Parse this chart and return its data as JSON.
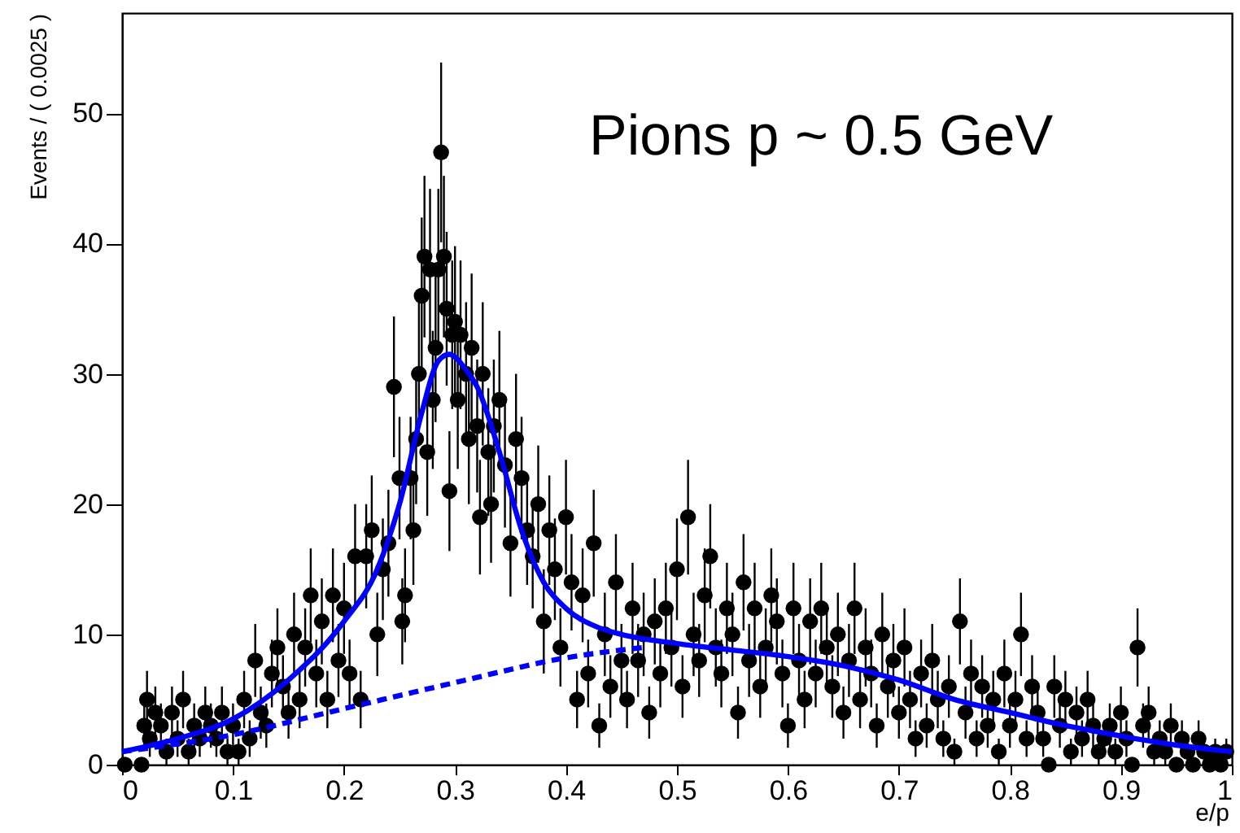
{
  "chart_data": {
    "type": "scatter",
    "xlabel": "e/p",
    "ylabel": "Events / ( 0.0025 )",
    "annotations": [
      "Pions p  ~ 0.5 GeV"
    ],
    "xlim": [
      0,
      1
    ],
    "xticks": [
      0,
      0.1,
      0.2,
      0.3,
      0.4,
      0.5,
      0.6,
      0.7,
      0.8,
      0.9,
      1
    ],
    "ylim": [
      0,
      57.7
    ],
    "yticks": [
      0,
      10,
      20,
      30,
      40,
      50
    ],
    "grid": false,
    "marker": "circle",
    "series": [
      {
        "color": "#000000",
        "x": [
          0.0025,
          0.0175,
          0.02,
          0.0225,
          0.025,
          0.03,
          0.035,
          0.04,
          0.045,
          0.05,
          0.055,
          0.06,
          0.065,
          0.07,
          0.075,
          0.08,
          0.085,
          0.09,
          0.095,
          0.1,
          0.105,
          0.11,
          0.115,
          0.12,
          0.125,
          0.13,
          0.135,
          0.14,
          0.145,
          0.15,
          0.155,
          0.16,
          0.165,
          0.17,
          0.175,
          0.18,
          0.185,
          0.19,
          0.195,
          0.2,
          0.205,
          0.21,
          0.215,
          0.22,
          0.225,
          0.23,
          0.235,
          0.24,
          0.245,
          0.25,
          0.2525,
          0.255,
          0.26,
          0.2625,
          0.265,
          0.2675,
          0.27,
          0.2725,
          0.275,
          0.2775,
          0.28,
          0.2825,
          0.285,
          0.2875,
          0.29,
          0.2925,
          0.295,
          0.2975,
          0.3,
          0.3025,
          0.305,
          0.31,
          0.3125,
          0.315,
          0.32,
          0.3225,
          0.325,
          0.33,
          0.3325,
          0.335,
          0.34,
          0.345,
          0.35,
          0.355,
          0.36,
          0.365,
          0.37,
          0.375,
          0.38,
          0.385,
          0.39,
          0.395,
          0.4,
          0.405,
          0.41,
          0.415,
          0.42,
          0.425,
          0.43,
          0.435,
          0.44,
          0.445,
          0.45,
          0.455,
          0.46,
          0.465,
          0.47,
          0.475,
          0.48,
          0.485,
          0.49,
          0.495,
          0.5,
          0.505,
          0.51,
          0.515,
          0.52,
          0.525,
          0.53,
          0.535,
          0.54,
          0.545,
          0.55,
          0.555,
          0.56,
          0.565,
          0.57,
          0.575,
          0.58,
          0.585,
          0.59,
          0.595,
          0.6,
          0.605,
          0.61,
          0.615,
          0.62,
          0.625,
          0.63,
          0.635,
          0.64,
          0.645,
          0.65,
          0.655,
          0.66,
          0.665,
          0.67,
          0.675,
          0.68,
          0.685,
          0.69,
          0.695,
          0.7,
          0.705,
          0.71,
          0.715,
          0.72,
          0.725,
          0.73,
          0.735,
          0.74,
          0.745,
          0.75,
          0.755,
          0.76,
          0.765,
          0.77,
          0.775,
          0.78,
          0.785,
          0.79,
          0.795,
          0.8,
          0.805,
          0.81,
          0.815,
          0.82,
          0.825,
          0.83,
          0.835,
          0.84,
          0.845,
          0.85,
          0.855,
          0.86,
          0.865,
          0.87,
          0.875,
          0.88,
          0.885,
          0.89,
          0.895,
          0.9,
          0.905,
          0.91,
          0.915,
          0.92,
          0.925,
          0.93,
          0.935,
          0.94,
          0.945,
          0.95,
          0.955,
          0.96,
          0.965,
          0.97,
          0.975,
          0.98,
          0.985,
          0.99,
          0.995
        ],
        "values": [
          0,
          0,
          3,
          5,
          2,
          4,
          3,
          1,
          4,
          2,
          5,
          1,
          3,
          2,
          4,
          3,
          2,
          4,
          1,
          3,
          1,
          5,
          2,
          8,
          4,
          3,
          7,
          9,
          6,
          4,
          10,
          5,
          9,
          13,
          7,
          11,
          5,
          13,
          8,
          12,
          7,
          16,
          5,
          16,
          18,
          10,
          15,
          17,
          29,
          22,
          11,
          13,
          22,
          18,
          25,
          30,
          36,
          39,
          24,
          38,
          28,
          32,
          38,
          47,
          39,
          35,
          21,
          33,
          34,
          28,
          33,
          30,
          25,
          32,
          26,
          19,
          30,
          24,
          20,
          26,
          28,
          23,
          17,
          25,
          22,
          18,
          16,
          20,
          11,
          18,
          15,
          9,
          19,
          14,
          5,
          13,
          7,
          17,
          3,
          10,
          6,
          14,
          8,
          5,
          12,
          8,
          10,
          4,
          11,
          7,
          12,
          9,
          15,
          6,
          19,
          10,
          8,
          13,
          16,
          9,
          7,
          12,
          10,
          4,
          14,
          8,
          12,
          6,
          9,
          13,
          11,
          7,
          3,
          12,
          8,
          5,
          11,
          7,
          12,
          9,
          6,
          10,
          4,
          8,
          12,
          5,
          9,
          7,
          3,
          10,
          6,
          8,
          4,
          9,
          5,
          2,
          7,
          3,
          8,
          5,
          2,
          6,
          1,
          11,
          4,
          7,
          2,
          6,
          3,
          5,
          1,
          7,
          3,
          5,
          10,
          2,
          6,
          4,
          2,
          0,
          6,
          3,
          5,
          1,
          4,
          2,
          5,
          3,
          1,
          2,
          3,
          1,
          4,
          2,
          0,
          9,
          3,
          4,
          1,
          2,
          1,
          3,
          0,
          2,
          1,
          0,
          2,
          1,
          0,
          1,
          0,
          1
        ],
        "errors": [
          null,
          null,
          1.7,
          2.2,
          1.4,
          2,
          1.7,
          1,
          2,
          1.4,
          2.2,
          1,
          1.7,
          1.4,
          2,
          1.7,
          1.4,
          2,
          1,
          1.7,
          1,
          2.2,
          1.4,
          2.8,
          2,
          1.7,
          2.6,
          3,
          2.4,
          2,
          3.2,
          2.2,
          3,
          3.6,
          2.6,
          3.3,
          2.2,
          3.6,
          2.8,
          3.5,
          2.6,
          4,
          2.2,
          4,
          4.2,
          3.2,
          3.9,
          4.1,
          5.4,
          4.7,
          3.3,
          3.6,
          4.7,
          4.2,
          5,
          5.5,
          6,
          6.2,
          4.9,
          6.2,
          5.3,
          5.7,
          6.2,
          6.9,
          6.2,
          5.9,
          4.6,
          5.7,
          5.8,
          5.3,
          5.7,
          5.5,
          5,
          5.7,
          5.1,
          4.4,
          5.5,
          4.9,
          4.5,
          5.1,
          5.3,
          4.8,
          4.1,
          5,
          4.7,
          4.2,
          4,
          4.5,
          4,
          4.2,
          3.9,
          3,
          4.4,
          3.7,
          2.2,
          3.6,
          2.6,
          4.1,
          1.7,
          3.2,
          2.4,
          3.7,
          2.8,
          2.2,
          3.5,
          2.8,
          3.2,
          2,
          3.3,
          2.6,
          3.5,
          3,
          3.9,
          2.4,
          4.4,
          3.2,
          2.8,
          3.6,
          4,
          3,
          2.6,
          3.5,
          3.2,
          2,
          3.7,
          2.8,
          3.5,
          2.4,
          3,
          3.6,
          3.3,
          2.6,
          1.7,
          3.5,
          2.8,
          2.2,
          3.3,
          2.6,
          3.5,
          3,
          2.4,
          3.2,
          2,
          2.8,
          3.5,
          2.2,
          3,
          2.6,
          1.7,
          3.2,
          2.4,
          2.8,
          2,
          3,
          2.2,
          1.4,
          2.6,
          1.7,
          2.8,
          2.2,
          1.4,
          2.4,
          1,
          3.3,
          2,
          2.6,
          1.4,
          2.4,
          1.7,
          2.2,
          1,
          2.6,
          1.7,
          2.2,
          3.2,
          1.4,
          2.4,
          2,
          1.4,
          null,
          2.4,
          1.7,
          2.2,
          1,
          2,
          1.4,
          2.2,
          1.7,
          1,
          1.4,
          1.7,
          1,
          2,
          1.4,
          null,
          3,
          1.7,
          2,
          1,
          1.4,
          1,
          1.7,
          null,
          1.4,
          1,
          null,
          1.4,
          1,
          null,
          1,
          null,
          1
        ]
      },
      {
        "type": "line",
        "color": "#0000ff",
        "line_style": "solid",
        "marker": "none",
        "x": [
          0,
          0.05,
          0.1,
          0.15,
          0.2,
          0.23,
          0.25,
          0.27,
          0.285,
          0.295,
          0.3,
          0.31,
          0.32,
          0.34,
          0.36,
          0.38,
          0.4,
          0.43,
          0.45,
          0.5,
          0.55,
          0.6,
          0.65,
          0.7,
          0.75,
          0.8,
          0.85,
          0.9,
          0.95,
          1
        ],
        "values": [
          1,
          2,
          3.5,
          6.5,
          11,
          15,
          20,
          27,
          31,
          31.5,
          31.3,
          30.3,
          29,
          24,
          18,
          14,
          12,
          10.5,
          10,
          9.3,
          8.8,
          8.3,
          7.6,
          6.5,
          5,
          4,
          3,
          2.2,
          1.5,
          1
        ]
      },
      {
        "type": "line",
        "color": "#0000ff",
        "line_style": "dashed",
        "marker": "none",
        "x": [
          0,
          0.1,
          0.2,
          0.3,
          0.4,
          0.47
        ],
        "values": [
          1,
          2.3,
          4.3,
          6.3,
          8.2,
          9
        ]
      }
    ]
  }
}
